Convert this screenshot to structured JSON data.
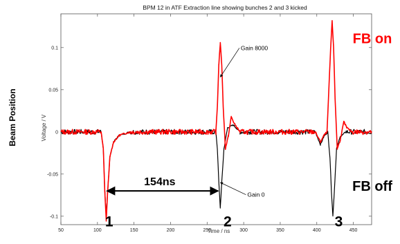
{
  "chart_data": {
    "type": "line",
    "title": "BPM 12 in ATF Extraction line showing bunches 2 and 3 kicked",
    "xlabel": "Time / ns",
    "ylabel": "Voltage / V",
    "side_label": "Beam Position",
    "xlim": [
      50,
      475
    ],
    "ylim": [
      -0.11,
      0.14
    ],
    "x_ticks": [
      50,
      100,
      150,
      200,
      250,
      300,
      350,
      400,
      450
    ],
    "x_tick_labels": [
      "50",
      "100",
      "150",
      "200",
      "250",
      "300",
      "350",
      "400",
      "450"
    ],
    "y_ticks": [
      -0.1,
      -0.05,
      0,
      0.05,
      0.1
    ],
    "y_tick_labels": [
      "-0.1",
      "-0.05",
      "0",
      "0.05",
      "0.1"
    ],
    "grid": false,
    "series": [
      {
        "name": "FB off",
        "color": "#000000",
        "points": [
          [
            50,
            0
          ],
          [
            105,
            0
          ],
          [
            108,
            -0.02
          ],
          [
            110,
            -0.07
          ],
          [
            112,
            -0.1
          ],
          [
            114,
            -0.07
          ],
          [
            117,
            -0.03
          ],
          [
            122,
            -0.012
          ],
          [
            130,
            -0.004
          ],
          [
            145,
            0
          ],
          [
            262,
            0
          ],
          [
            264,
            -0.02
          ],
          [
            266,
            -0.06
          ],
          [
            268,
            -0.09
          ],
          [
            270,
            -0.06
          ],
          [
            273,
            -0.02
          ],
          [
            278,
            0.005
          ],
          [
            286,
            0.008
          ],
          [
            295,
            0
          ],
          [
            398,
            0
          ],
          [
            405,
            -0.015
          ],
          [
            410,
            -0.005
          ],
          [
            415,
            0
          ],
          [
            418,
            -0.03
          ],
          [
            420,
            -0.07
          ],
          [
            422,
            -0.1
          ],
          [
            424,
            -0.07
          ],
          [
            427,
            -0.02
          ],
          [
            432,
            -0.006
          ],
          [
            440,
            0
          ],
          [
            475,
            0
          ]
        ]
      },
      {
        "name": "FB on",
        "color": "#ff0000",
        "points": [
          [
            50,
            0
          ],
          [
            105,
            0
          ],
          [
            108,
            -0.02
          ],
          [
            110,
            -0.07
          ],
          [
            112,
            -0.105
          ],
          [
            114,
            -0.07
          ],
          [
            117,
            -0.03
          ],
          [
            122,
            -0.012
          ],
          [
            130,
            -0.004
          ],
          [
            145,
            0
          ],
          [
            262,
            0
          ],
          [
            264,
            0.03
          ],
          [
            266,
            0.08
          ],
          [
            268,
            0.105
          ],
          [
            270,
            0.08
          ],
          [
            272,
            0.03
          ],
          [
            275,
            -0.02
          ],
          [
            279,
            -0.005
          ],
          [
            283,
            0.018
          ],
          [
            287,
            0.01
          ],
          [
            295,
            0
          ],
          [
            398,
            0
          ],
          [
            405,
            -0.012
          ],
          [
            410,
            -0.004
          ],
          [
            414,
            0
          ],
          [
            416,
            0.04
          ],
          [
            419,
            0.1
          ],
          [
            421,
            0.131
          ],
          [
            423,
            0.1
          ],
          [
            425,
            0.04
          ],
          [
            428,
            -0.02
          ],
          [
            432,
            -0.01
          ],
          [
            437,
            0.012
          ],
          [
            441,
            0.005
          ],
          [
            448,
            0
          ],
          [
            475,
            0
          ]
        ]
      }
    ],
    "annotations": [
      {
        "text": "Gain 8000",
        "arrow_to": [
          268,
          0.065
        ],
        "text_at": [
          296,
          0.097
        ]
      },
      {
        "text": "Gain 0",
        "arrow_to": [
          268,
          -0.06
        ],
        "text_at": [
          305,
          -0.077
        ]
      }
    ],
    "measurement": {
      "text": "154ns",
      "from": [
        112,
        -0.07
      ],
      "to": [
        266,
        -0.07
      ]
    },
    "bunch_labels": [
      {
        "text": "1",
        "at": [
          116,
          -0.112
        ]
      },
      {
        "text": "2",
        "at": [
          278,
          -0.112
        ]
      },
      {
        "text": "3",
        "at": [
          430,
          -0.112
        ]
      }
    ],
    "side_notes": [
      {
        "text": "FB on",
        "color": "#ff0000",
        "at": [
          538,
          0.105
        ]
      },
      {
        "text": "FB off",
        "color": "#000000",
        "at": [
          538,
          -0.07
        ]
      }
    ]
  }
}
